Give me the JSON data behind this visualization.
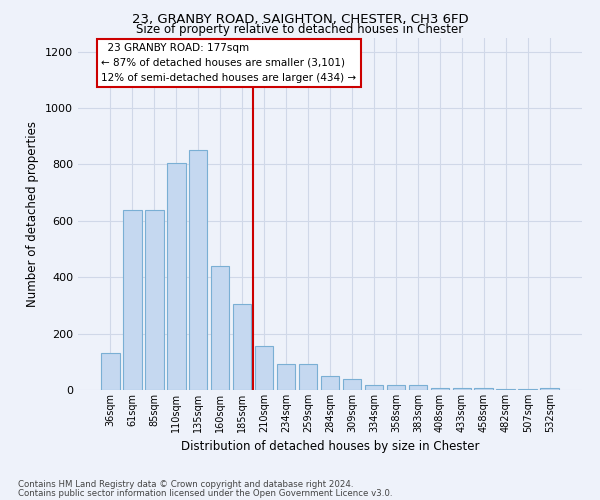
{
  "title1": "23, GRANBY ROAD, SAIGHTON, CHESTER, CH3 6FD",
  "title2": "Size of property relative to detached houses in Chester",
  "xlabel": "Distribution of detached houses by size in Chester",
  "ylabel": "Number of detached properties",
  "footer1": "Contains HM Land Registry data © Crown copyright and database right 2024.",
  "footer2": "Contains public sector information licensed under the Open Government Licence v3.0.",
  "annotation_line1": "  23 GRANBY ROAD: 177sqm",
  "annotation_line2": "← 87% of detached houses are smaller (3,101)",
  "annotation_line3": "12% of semi-detached houses are larger (434) →",
  "bar_color": "#c5d8f0",
  "bar_edge_color": "#7aafd4",
  "vline_color": "#cc0000",
  "categories": [
    "36sqm",
    "61sqm",
    "85sqm",
    "110sqm",
    "135sqm",
    "160sqm",
    "185sqm",
    "210sqm",
    "234sqm",
    "259sqm",
    "284sqm",
    "309sqm",
    "334sqm",
    "358sqm",
    "383sqm",
    "408sqm",
    "433sqm",
    "458sqm",
    "482sqm",
    "507sqm",
    "532sqm"
  ],
  "values": [
    130,
    637,
    637,
    805,
    852,
    440,
    305,
    155,
    93,
    93,
    50,
    38,
    18,
    18,
    18,
    8,
    8,
    8,
    3,
    3,
    8
  ],
  "vline_position": 6.5,
  "ylim": [
    0,
    1250
  ],
  "yticks": [
    0,
    200,
    400,
    600,
    800,
    1000,
    1200
  ],
  "background_color": "#eef2fa",
  "plot_bg_color": "#eef2fa",
  "grid_color": "#d0d8e8"
}
